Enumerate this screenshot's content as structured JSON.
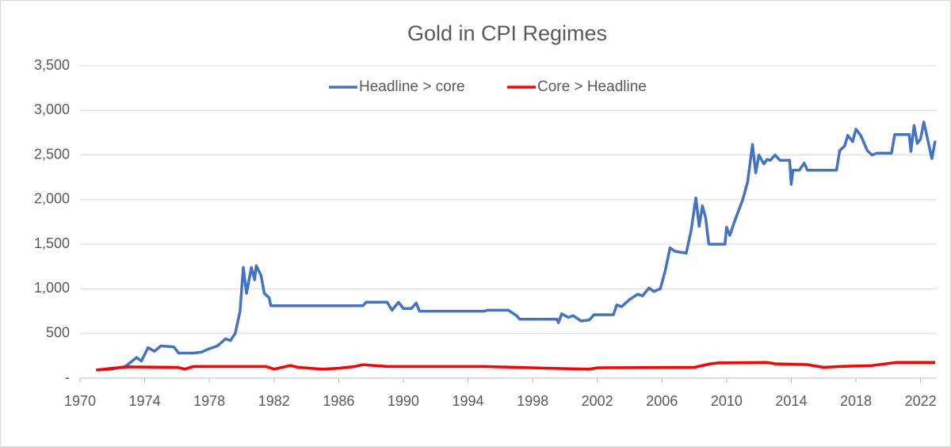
{
  "chart_data": {
    "type": "line",
    "title": "Gold in CPI Regimes",
    "xlim": [
      1970,
      2023
    ],
    "xticks": [
      1970,
      1974,
      1978,
      1982,
      1986,
      1990,
      1994,
      1998,
      2002,
      2006,
      2010,
      2014,
      2018,
      2022
    ],
    "ylim": [
      0,
      3500
    ],
    "yticks": [
      {
        "value": 0,
        "label": "-"
      },
      500,
      {
        "value": 1000,
        "label": "1,000"
      },
      {
        "value": 1500,
        "label": "1,500"
      },
      {
        "value": 2000,
        "label": "2,000"
      },
      {
        "value": 2500,
        "label": "2,500"
      },
      {
        "value": 3000,
        "label": "3,000"
      },
      {
        "value": 3500,
        "label": "3,500"
      }
    ],
    "grid": true,
    "legend": "top",
    "series": [
      {
        "name": "Headline > core",
        "color": "#4472c4",
        "x": [
          1971,
          1972,
          1972.8,
          1973.5,
          1973.8,
          1974.2,
          1974.6,
          1975,
          1975.8,
          1976.1,
          1977,
          1977.5,
          1978,
          1978.5,
          1979,
          1979.3,
          1979.6,
          1979.9,
          1980.1,
          1980.3,
          1980.6,
          1980.8,
          1980.9,
          1981.2,
          1981.4,
          1981.7,
          1981.8,
          1987.5,
          1987.7,
          1989,
          1989.3,
          1989.7,
          1990,
          1990.5,
          1990.8,
          1991,
          1995,
          1995.2,
          1996.5,
          1997,
          1997.2,
          1999.5,
          1999.6,
          1999.8,
          2000.2,
          2000.5,
          2001,
          2001.5,
          2001.8,
          2003,
          2003.2,
          2003.5,
          2004,
          2004.5,
          2004.8,
          2005.2,
          2005.5,
          2005.9,
          2006.2,
          2006.5,
          2006.8,
          2007.5,
          2007.8,
          2008.1,
          2008.3,
          2008.5,
          2008.7,
          2008.9,
          2009.9,
          2010,
          2010.2,
          2010.5,
          2011,
          2011.3,
          2011.6,
          2011.8,
          2012,
          2012.3,
          2012.5,
          2012.7,
          2013,
          2013.3,
          2013.9,
          2014,
          2014.1,
          2014.5,
          2014.8,
          2015,
          2016.8,
          2017,
          2017.3,
          2017.5,
          2017.8,
          2018,
          2018.3,
          2018.7,
          2019,
          2019.3,
          2020.2,
          2020.4,
          2021.3,
          2021.4,
          2021.6,
          2021.8,
          2022,
          2022.2,
          2022.7,
          2022.9
        ],
        "values": [
          90,
          100,
          130,
          230,
          190,
          340,
          300,
          360,
          350,
          280,
          280,
          290,
          330,
          360,
          440,
          420,
          500,
          750,
          1240,
          950,
          1240,
          1100,
          1260,
          1150,
          950,
          900,
          810,
          810,
          850,
          850,
          760,
          850,
          780,
          780,
          840,
          750,
          750,
          760,
          760,
          700,
          660,
          660,
          620,
          720,
          680,
          700,
          640,
          650,
          710,
          710,
          820,
          800,
          880,
          940,
          920,
          1010,
          970,
          1000,
          1200,
          1460,
          1420,
          1400,
          1650,
          2020,
          1700,
          1930,
          1800,
          1500,
          1500,
          1690,
          1600,
          1760,
          2000,
          2200,
          2620,
          2300,
          2500,
          2400,
          2450,
          2440,
          2500,
          2440,
          2440,
          2170,
          2330,
          2330,
          2410,
          2330,
          2330,
          2550,
          2600,
          2720,
          2650,
          2790,
          2720,
          2550,
          2500,
          2520,
          2520,
          2730,
          2730,
          2540,
          2830,
          2630,
          2680,
          2870,
          2460,
          2660
        ]
      },
      {
        "name": "Core > Headline",
        "color": "#ff0000",
        "x": [
          1971,
          1972,
          1973,
          1976,
          1976.5,
          1977,
          1981.5,
          1982,
          1983,
          1983.5,
          1985,
          1986,
          1987,
          1987.5,
          1989,
          1995,
          1997,
          1999,
          2001.5,
          2002,
          2008,
          2009,
          2009.5,
          2012.5,
          2013,
          2015,
          2016,
          2017,
          2019,
          2020.5,
          2022.9
        ],
        "values": [
          90,
          110,
          125,
          120,
          100,
          130,
          130,
          100,
          140,
          120,
          100,
          110,
          130,
          150,
          130,
          130,
          120,
          110,
          100,
          115,
          120,
          160,
          170,
          175,
          160,
          150,
          120,
          130,
          140,
          175,
          175
        ]
      }
    ]
  }
}
